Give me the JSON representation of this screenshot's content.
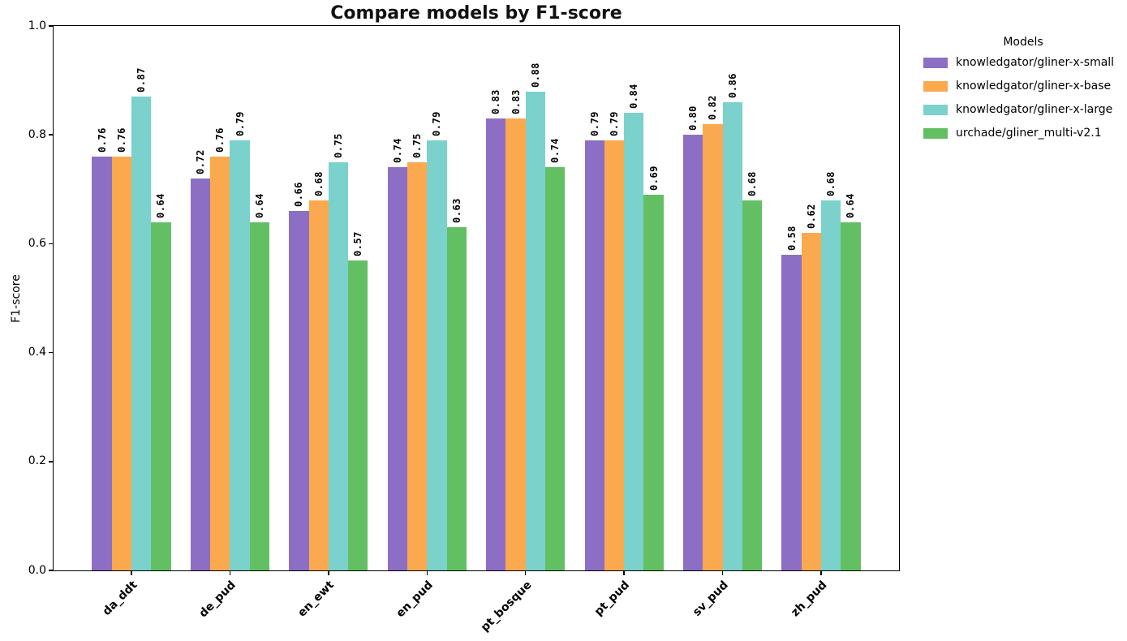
{
  "chart_data": {
    "type": "bar",
    "title": "Compare models by F1-score",
    "xlabel": "",
    "ylabel": "F1-score",
    "ylim": [
      0.0,
      1.0
    ],
    "yticks": [
      0.0,
      0.2,
      0.4,
      0.6,
      0.8,
      1.0
    ],
    "grid": false,
    "bar_value_labels": true,
    "value_label_rotation_deg": 90,
    "category_label_rotation_deg": 45,
    "categories": [
      "da_ddt",
      "de_pud",
      "en_ewt",
      "en_pud",
      "pt_bosque",
      "pt_pud",
      "sv_pud",
      "zh_pud"
    ],
    "series": [
      {
        "name": "knowledgator/gliner-x-small",
        "color": "#8c6fc4",
        "values": [
          0.76,
          0.72,
          0.66,
          0.74,
          0.83,
          0.79,
          0.8,
          0.58
        ]
      },
      {
        "name": "knowledgator/gliner-x-base",
        "color": "#fba94e",
        "values": [
          0.76,
          0.76,
          0.68,
          0.75,
          0.83,
          0.79,
          0.82,
          0.62
        ]
      },
      {
        "name": "knowledgator/gliner-x-large",
        "color": "#7bd1cb",
        "values": [
          0.87,
          0.79,
          0.75,
          0.79,
          0.88,
          0.84,
          0.86,
          0.68
        ]
      },
      {
        "name": "urchade/gliner_multi-v2.1",
        "color": "#62c063",
        "values": [
          0.64,
          0.64,
          0.57,
          0.63,
          0.74,
          0.69,
          0.68,
          0.64
        ]
      }
    ],
    "legend": {
      "title": "Models",
      "position": "outside-upper-right"
    }
  }
}
